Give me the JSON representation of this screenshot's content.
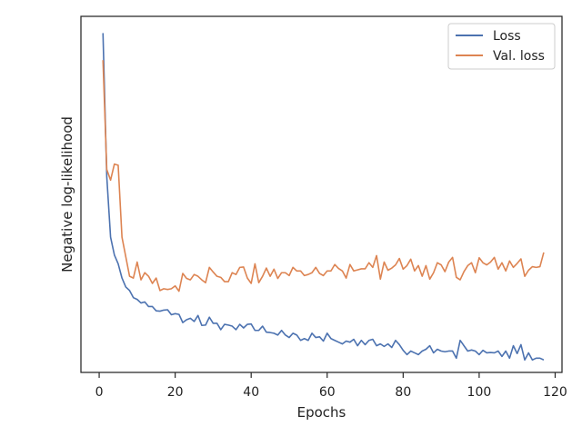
{
  "chart_data": {
    "type": "line",
    "title": "",
    "xlabel": "Epochs",
    "ylabel": "Negative log-likelihood",
    "xlim": [
      -4.8,
      121.8
    ],
    "ylim": [
      0.0,
      1.0
    ],
    "x_ticks": [
      0,
      20,
      40,
      60,
      80,
      100,
      120
    ],
    "y_ticks_shown": false,
    "grid": false,
    "legend": "top-right",
    "series": [
      {
        "name": "Loss",
        "color": "#4c72b0",
        "x": [
          1,
          2,
          3,
          4,
          5,
          6,
          7,
          8,
          9,
          10,
          11,
          12,
          13,
          14,
          15,
          16,
          17,
          18,
          19,
          20,
          21,
          22,
          23,
          24,
          25,
          26,
          27,
          28,
          29,
          30,
          31,
          32,
          33,
          34,
          35,
          36,
          37,
          38,
          39,
          40,
          41,
          42,
          43,
          44,
          45,
          46,
          47,
          48,
          49,
          50,
          51,
          52,
          53,
          54,
          55,
          56,
          57,
          58,
          59,
          60,
          61,
          62,
          63,
          64,
          65,
          66,
          67,
          68,
          69,
          70,
          71,
          72,
          73,
          74,
          75,
          76,
          77,
          78,
          79,
          80,
          81,
          82,
          83,
          84,
          85,
          86,
          87,
          88,
          89,
          90,
          91,
          92,
          93,
          94,
          95,
          96,
          97,
          98,
          99,
          100,
          101,
          102,
          103,
          104,
          105,
          106,
          107,
          108,
          109,
          110,
          111,
          112,
          113,
          114,
          115,
          116,
          117
        ],
        "values": [
          0.953,
          0.55,
          0.38,
          0.33,
          0.305,
          0.265,
          0.24,
          0.23,
          0.21,
          0.205,
          0.195,
          0.198,
          0.185,
          0.185,
          0.173,
          0.172,
          0.175,
          0.176,
          0.162,
          0.165,
          0.163,
          0.14,
          0.148,
          0.152,
          0.143,
          0.16,
          0.132,
          0.133,
          0.155,
          0.138,
          0.138,
          0.12,
          0.135,
          0.133,
          0.13,
          0.12,
          0.135,
          0.125,
          0.135,
          0.136,
          0.118,
          0.118,
          0.13,
          0.113,
          0.112,
          0.11,
          0.105,
          0.118,
          0.105,
          0.098,
          0.11,
          0.105,
          0.09,
          0.095,
          0.09,
          0.11,
          0.098,
          0.1,
          0.088,
          0.11,
          0.095,
          0.09,
          0.085,
          0.08,
          0.088,
          0.085,
          0.093,
          0.075,
          0.09,
          0.078,
          0.09,
          0.093,
          0.075,
          0.08,
          0.073,
          0.08,
          0.07,
          0.09,
          0.078,
          0.062,
          0.05,
          0.06,
          0.055,
          0.05,
          0.06,
          0.065,
          0.075,
          0.055,
          0.065,
          0.06,
          0.058,
          0.06,
          0.06,
          0.04,
          0.09,
          0.075,
          0.06,
          0.063,
          0.06,
          0.05,
          0.062,
          0.055,
          0.056,
          0.055,
          0.06,
          0.045,
          0.06,
          0.04,
          0.075,
          0.053,
          0.078,
          0.035,
          0.055,
          0.035,
          0.04,
          0.04,
          0.035
        ]
      },
      {
        "name": "Val. loss",
        "color": "#dd8452",
        "x": [
          1,
          2,
          3,
          4,
          5,
          6,
          7,
          8,
          9,
          10,
          11,
          12,
          13,
          14,
          15,
          16,
          17,
          18,
          19,
          20,
          21,
          22,
          23,
          24,
          25,
          26,
          27,
          28,
          29,
          30,
          31,
          32,
          33,
          34,
          35,
          36,
          37,
          38,
          39,
          40,
          41,
          42,
          43,
          44,
          45,
          46,
          47,
          48,
          49,
          50,
          51,
          52,
          53,
          54,
          55,
          56,
          57,
          58,
          59,
          60,
          61,
          62,
          63,
          64,
          65,
          66,
          67,
          68,
          69,
          70,
          71,
          72,
          73,
          74,
          75,
          76,
          77,
          78,
          79,
          80,
          81,
          82,
          83,
          84,
          85,
          86,
          87,
          88,
          89,
          90,
          91,
          92,
          93,
          94,
          95,
          96,
          97,
          98,
          99,
          100,
          101,
          102,
          103,
          104,
          105,
          106,
          107,
          108,
          109,
          110,
          111,
          112,
          113,
          114,
          115,
          116,
          117
        ],
        "values": [
          0.877,
          0.57,
          0.54,
          0.585,
          0.582,
          0.38,
          0.325,
          0.27,
          0.265,
          0.31,
          0.26,
          0.28,
          0.27,
          0.25,
          0.265,
          0.23,
          0.235,
          0.233,
          0.235,
          0.243,
          0.228,
          0.278,
          0.264,
          0.26,
          0.275,
          0.27,
          0.26,
          0.252,
          0.295,
          0.282,
          0.27,
          0.267,
          0.255,
          0.255,
          0.28,
          0.275,
          0.295,
          0.296,
          0.265,
          0.25,
          0.305,
          0.252,
          0.27,
          0.293,
          0.27,
          0.29,
          0.264,
          0.28,
          0.28,
          0.272,
          0.295,
          0.285,
          0.285,
          0.272,
          0.275,
          0.28,
          0.295,
          0.278,
          0.272,
          0.285,
          0.285,
          0.303,
          0.292,
          0.285,
          0.265,
          0.303,
          0.285,
          0.288,
          0.291,
          0.291,
          0.308,
          0.295,
          0.328,
          0.262,
          0.31,
          0.287,
          0.293,
          0.302,
          0.32,
          0.29,
          0.3,
          0.318,
          0.285,
          0.3,
          0.27,
          0.3,
          0.262,
          0.28,
          0.308,
          0.302,
          0.283,
          0.31,
          0.323,
          0.267,
          0.26,
          0.283,
          0.3,
          0.308,
          0.28,
          0.322,
          0.308,
          0.302,
          0.31,
          0.323,
          0.29,
          0.308,
          0.285,
          0.313,
          0.295,
          0.306,
          0.319,
          0.27,
          0.287,
          0.297,
          0.295,
          0.297,
          0.337
        ]
      }
    ]
  }
}
